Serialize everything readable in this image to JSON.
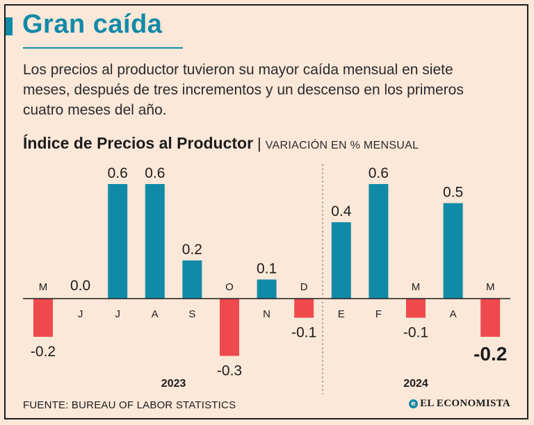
{
  "header": {
    "title": "Gran caída",
    "description": "Los precios al productor tuvieron su mayor caída mensual en siete meses, después de tres incrementos y un descenso en los primeros cuatro meses del año."
  },
  "chart_header": {
    "title": "Índice de Precios al Productor",
    "separator": "|",
    "subtitle": "VARIACIÓN EN % MENSUAL"
  },
  "chart_data": {
    "type": "bar",
    "title": "Índice de Precios al Productor",
    "ylabel": "VARIACIÓN EN % MENSUAL",
    "xlabel": "",
    "ylim": [
      -0.3,
      0.6
    ],
    "grid": false,
    "categories": [
      "M",
      "J",
      "J",
      "A",
      "S",
      "O",
      "N",
      "D",
      "E",
      "F",
      "M",
      "A",
      "M"
    ],
    "values": [
      -0.2,
      0.0,
      0.6,
      0.6,
      0.2,
      -0.3,
      0.1,
      -0.1,
      0.4,
      0.6,
      -0.1,
      0.5,
      -0.2
    ],
    "value_labels": [
      "-0.2",
      "0.0",
      "0.6",
      "0.6",
      "0.2",
      "-0.3",
      "0.1",
      "-0.1",
      "0.4",
      "0.6",
      "-0.1",
      "0.5",
      "-0.2"
    ],
    "years": [
      {
        "label": "2023",
        "start_index": 0,
        "end_index": 7
      },
      {
        "label": "2024",
        "start_index": 8,
        "end_index": 12
      }
    ],
    "highlight_index": 12,
    "colors": {
      "positive": "#118aa8",
      "negative": "#ee4a4d",
      "axis": "#1c1c1c",
      "divider": "#777777"
    }
  },
  "footer": {
    "source": "FUENTE: BUREAU OF LABOR STATISTICS",
    "brand": "EL ECONOMISTA",
    "brand_mark": "e"
  }
}
